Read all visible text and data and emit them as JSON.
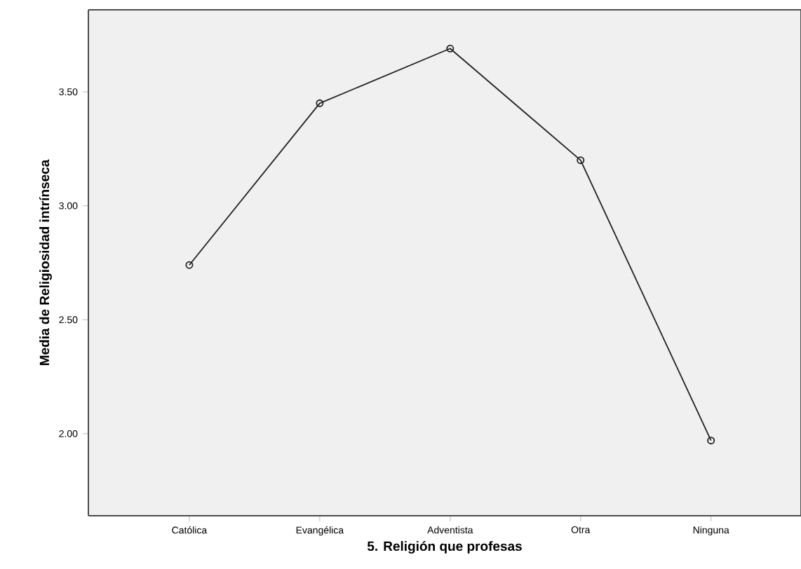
{
  "chart_data": {
    "type": "line",
    "xlabel": "5. Religión que profesas",
    "ylabel": "Media de Religiosidad intrínseca",
    "categories": [
      "Católica",
      "Evangélica",
      "Adventista",
      "Otra",
      "Ninguna"
    ],
    "values": [
      2.74,
      3.45,
      3.69,
      3.2,
      1.97
    ],
    "color": "#222222",
    "marker": "circle",
    "line_style": "solid",
    "grid": false,
    "ylim": [
      1.64,
      3.86
    ],
    "yticks": [
      {
        "value": 2,
        "label": "2.00"
      },
      {
        "value": 2.5,
        "label": "2.50"
      },
      {
        "value": 3,
        "label": "3.00"
      },
      {
        "value": 3.5,
        "label": "3.50"
      }
    ]
  }
}
